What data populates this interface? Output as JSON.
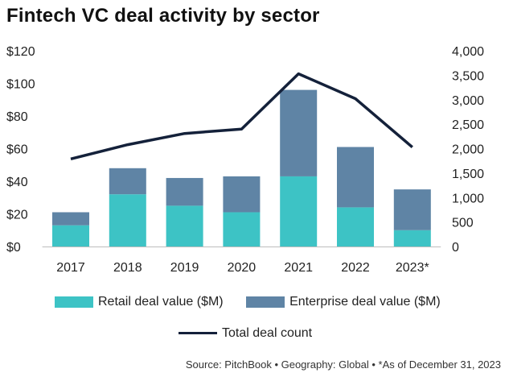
{
  "chart_data": {
    "type": "bar",
    "stacked": true,
    "title": "Fintech VC deal activity by sector",
    "categories": [
      "2017",
      "2018",
      "2019",
      "2020",
      "2021",
      "2022",
      "2023*"
    ],
    "series": [
      {
        "name": "Retail deal value ($M)",
        "values": [
          13,
          32,
          25,
          21,
          43,
          24,
          10
        ],
        "color": "#3dc3c5"
      },
      {
        "name": "Enterprise deal value ($M)",
        "values": [
          8,
          16,
          17,
          22,
          53,
          37,
          25
        ],
        "color": "#5f84a5"
      }
    ],
    "line_series": {
      "name": "Total deal count",
      "values": [
        1790,
        2080,
        2310,
        2400,
        3530,
        3020,
        2030
      ],
      "color": "#14213a"
    },
    "ylim_left": [
      0,
      120
    ],
    "ylim_right": [
      0,
      4000
    ],
    "yticks_left": [
      "$0",
      "$20",
      "$40",
      "$60",
      "$80",
      "$100",
      "$120"
    ],
    "yticks_right": [
      "0",
      "500",
      "1,000",
      "1,500",
      "2,000",
      "2,500",
      "3,000",
      "3,500",
      "4,000"
    ],
    "legend_position": "bottom"
  },
  "source": "Source: PitchBook  •  Geography: Global  •  *As of December 31, 2023"
}
